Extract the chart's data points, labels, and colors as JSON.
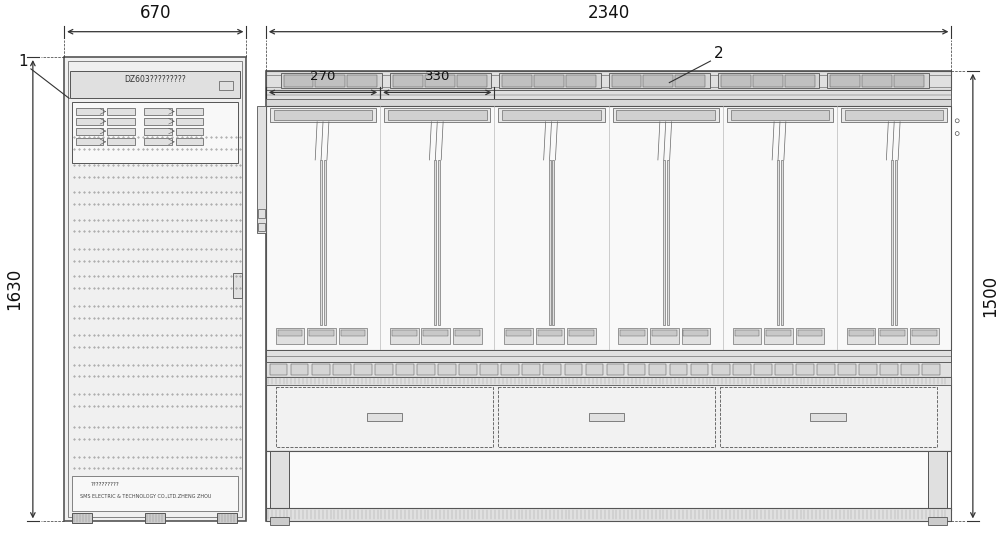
{
  "bg_color": "#ffffff",
  "line_color": "#555555",
  "light_line": "#aaaaaa",
  "dim_line_color": "#333333",
  "fill_light": "#f0f0f0",
  "fill_mid": "#e0e0e0",
  "fill_dark": "#cccccc",
  "fig_width": 10.0,
  "fig_height": 5.54,
  "dpi": 100,
  "dim_670": "670",
  "dim_2340": "2340",
  "dim_270": "270",
  "dim_330": "330",
  "dim_1630": "1630",
  "dim_1500": "1500",
  "label_1": "1",
  "label_2": "2",
  "cabinet_text1": "DZ603?????????",
  "cabinet_text2_line1": "??????????",
  "cabinet_text2_line2": "SMS ELECTRIC & TECHNOLOGY CO.,LTD.ZHENG ZHOU"
}
